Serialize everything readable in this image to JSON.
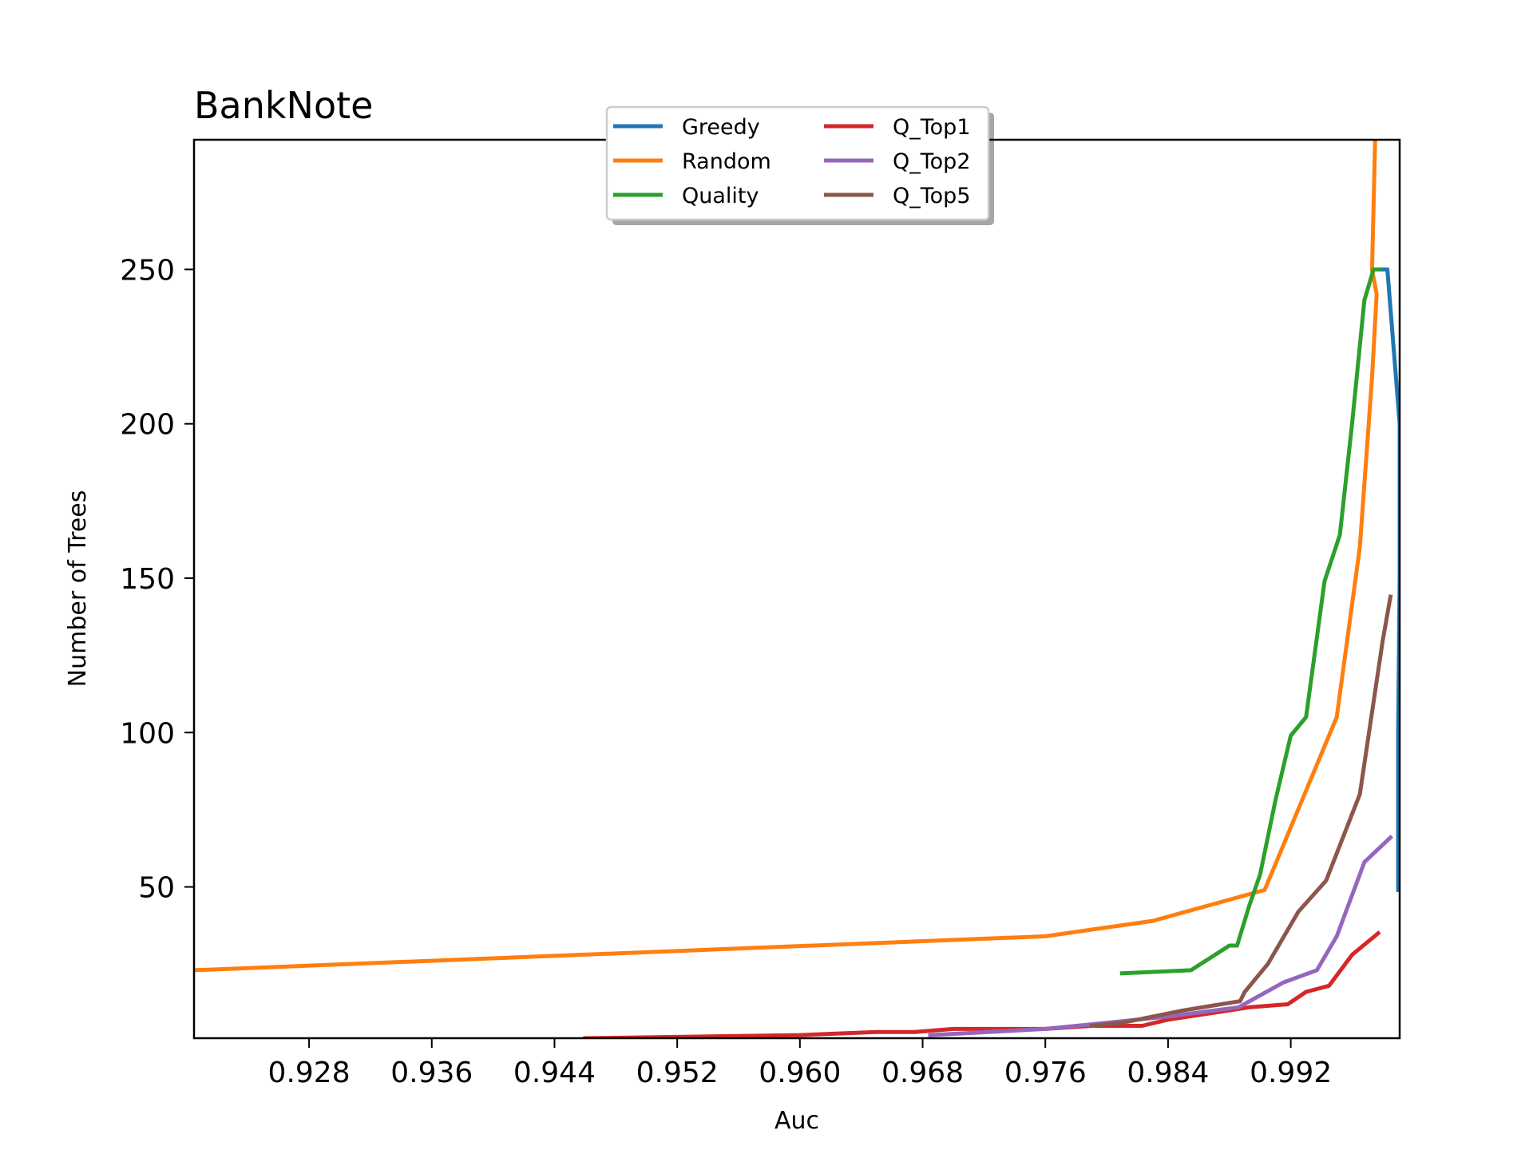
{
  "chart_data": {
    "type": "line",
    "title": "BankNote",
    "xlabel": "Auc",
    "ylabel": "Number of Trees",
    "xlim": [
      0.9205,
      0.9991
    ],
    "ylim": [
      1,
      292
    ],
    "xticks": [
      0.928,
      0.936,
      0.944,
      0.952,
      0.96,
      0.968,
      0.976,
      0.984,
      0.992
    ],
    "xtick_labels": [
      "0.928",
      "0.936",
      "0.944",
      "0.952",
      "0.960",
      "0.968",
      "0.976",
      "0.984",
      "0.992"
    ],
    "yticks": [
      50,
      100,
      150,
      200,
      250
    ],
    "ytick_labels": [
      "50",
      "100",
      "150",
      "200",
      "250"
    ],
    "grid": false,
    "legend_position": "top-center",
    "legend_columns": 2,
    "series": [
      {
        "name": "Greedy",
        "color": "#1f77b4",
        "points": [
          [
            0.999,
            49
          ],
          [
            0.999,
            100
          ],
          [
            0.9991,
            150
          ],
          [
            0.9991,
            200
          ],
          [
            0.9983,
            250
          ],
          [
            0.9979,
            250
          ]
        ]
      },
      {
        "name": "Random",
        "color": "#ff7f0e",
        "points": [
          [
            0.9205,
            23
          ],
          [
            0.976,
            34
          ],
          [
            0.983,
            39
          ],
          [
            0.9903,
            49
          ],
          [
            0.995,
            105
          ],
          [
            0.9965,
            160
          ],
          [
            0.9973,
            215
          ],
          [
            0.9976,
            242
          ],
          [
            0.9973,
            250
          ],
          [
            0.9975,
            292
          ]
        ]
      },
      {
        "name": "Quality",
        "color": "#2ca02c",
        "points": [
          [
            0.981,
            22
          ],
          [
            0.9855,
            23
          ],
          [
            0.988,
            31
          ],
          [
            0.9885,
            31
          ],
          [
            0.9893,
            44
          ],
          [
            0.99,
            54
          ],
          [
            0.991,
            78
          ],
          [
            0.992,
            99
          ],
          [
            0.993,
            105
          ],
          [
            0.9942,
            149
          ],
          [
            0.9952,
            164
          ],
          [
            0.996,
            200
          ],
          [
            0.9968,
            240
          ],
          [
            0.9974,
            250
          ],
          [
            0.9978,
            250
          ]
        ]
      },
      {
        "name": "Q_Top1",
        "color": "#d62728",
        "points": [
          [
            0.946,
            1
          ],
          [
            0.96,
            2
          ],
          [
            0.965,
            3
          ],
          [
            0.9675,
            3
          ],
          [
            0.97,
            4
          ],
          [
            0.974,
            4
          ],
          [
            0.976,
            4
          ],
          [
            0.979,
            5
          ],
          [
            0.9823,
            5
          ],
          [
            0.984,
            7
          ],
          [
            0.988,
            10
          ],
          [
            0.9893,
            11
          ],
          [
            0.9918,
            12
          ],
          [
            0.993,
            16
          ],
          [
            0.9945,
            18
          ],
          [
            0.996,
            28
          ],
          [
            0.9977,
            35
          ]
        ]
      },
      {
        "name": "Q_Top2",
        "color": "#9467bd",
        "points": [
          [
            0.9685,
            2
          ],
          [
            0.976,
            4
          ],
          [
            0.98,
            6
          ],
          [
            0.984,
            8
          ],
          [
            0.9886,
            11
          ],
          [
            0.9915,
            19
          ],
          [
            0.9937,
            23
          ],
          [
            0.995,
            34
          ],
          [
            0.9968,
            58
          ],
          [
            0.9985,
            66
          ]
        ]
      },
      {
        "name": "Q_Top5",
        "color": "#8c564b",
        "points": [
          [
            0.979,
            5
          ],
          [
            0.981,
            6
          ],
          [
            0.985,
            10
          ],
          [
            0.9887,
            13
          ],
          [
            0.989,
            16
          ],
          [
            0.9905,
            25
          ],
          [
            0.9925,
            42
          ],
          [
            0.9943,
            52
          ],
          [
            0.9965,
            80
          ],
          [
            0.998,
            130
          ],
          [
            0.9985,
            144
          ]
        ]
      }
    ]
  }
}
